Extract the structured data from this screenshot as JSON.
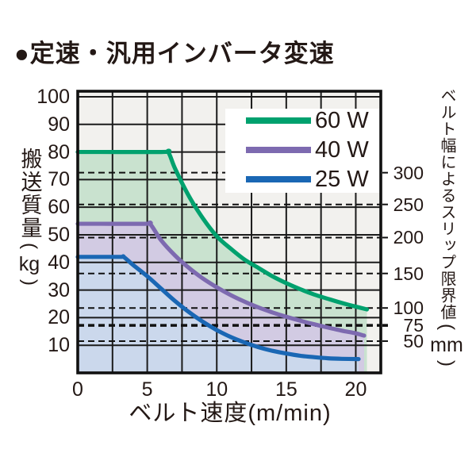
{
  "title": "●定速・汎用インバータ変速",
  "chart_data": {
    "type": "line",
    "title": "定速・汎用インバータ変速",
    "xlabel": "ベルト速度(m/min)",
    "ylabel": "搬送質量(kg)",
    "ylabel_main": "搬送質量",
    "ylabel_unit": "kg",
    "y2label": "ベルト幅によるスリップ限界値(mm)",
    "y2label_main": "ベルト幅によるスリップ限界値",
    "y2label_unit": "mm",
    "paren_open": "(",
    "paren_close": ")",
    "xlim": [
      0,
      21.8
    ],
    "ylim": [
      0,
      102
    ],
    "x_ticks": [
      0,
      5,
      10,
      15,
      20
    ],
    "y_ticks": [
      10,
      20,
      30,
      40,
      50,
      60,
      70,
      80,
      90,
      100
    ],
    "x_gridlines": [
      2.5,
      5,
      7.5,
      10,
      12.5,
      15,
      17.5,
      20
    ],
    "y_gridlines": [
      10,
      20,
      30,
      40,
      50,
      60,
      70,
      80,
      90,
      100
    ],
    "grid_on": true,
    "plot_bg": "#f2f1ee",
    "grid_color": "#1b1b1b",
    "border_color": "#111111",
    "legend_position": "top-right",
    "series": [
      {
        "name": "60 W",
        "color": "#00a16e",
        "fill": "#c9e2cf",
        "points": [
          [
            0,
            80
          ],
          [
            6,
            80
          ],
          [
            6.5,
            80
          ],
          [
            7,
            74
          ],
          [
            8,
            64
          ],
          [
            9,
            56
          ],
          [
            10,
            49.5
          ],
          [
            11,
            45
          ],
          [
            12,
            41
          ],
          [
            13,
            38
          ],
          [
            14,
            35
          ],
          [
            15,
            32.5
          ],
          [
            16,
            30.3
          ],
          [
            17,
            28.4
          ],
          [
            18,
            26.8
          ],
          [
            19,
            25.3
          ],
          [
            20,
            24
          ],
          [
            20.8,
            23
          ]
        ]
      },
      {
        "name": "40 W",
        "color": "#7d6ab0",
        "fill": "#d2cbe3",
        "points": [
          [
            0,
            54
          ],
          [
            4.8,
            54
          ],
          [
            5.2,
            54
          ],
          [
            6,
            48
          ],
          [
            7,
            42.5
          ],
          [
            8,
            38
          ],
          [
            9,
            34.2
          ],
          [
            10,
            31
          ],
          [
            11,
            28.2
          ],
          [
            12,
            25.8
          ],
          [
            13,
            23.7
          ],
          [
            14,
            21.9
          ],
          [
            15,
            20.3
          ],
          [
            16,
            18.9
          ],
          [
            17,
            17.6
          ],
          [
            18,
            16.4
          ],
          [
            19,
            15.3
          ],
          [
            20,
            14.3
          ],
          [
            20.6,
            13.5
          ]
        ]
      },
      {
        "name": "25 W",
        "color": "#1a67b4",
        "fill": "#cbd8ec",
        "points": [
          [
            0,
            42
          ],
          [
            3,
            42
          ],
          [
            3.3,
            42
          ],
          [
            4,
            39
          ],
          [
            5,
            35
          ],
          [
            6,
            30.5
          ],
          [
            7,
            26
          ],
          [
            8,
            22
          ],
          [
            9,
            18.5
          ],
          [
            10,
            15.5
          ],
          [
            11,
            13
          ],
          [
            12,
            11
          ],
          [
            13,
            9.3
          ],
          [
            14,
            8
          ],
          [
            15,
            7
          ],
          [
            16,
            6.2
          ],
          [
            17,
            5.7
          ],
          [
            18,
            5.3
          ],
          [
            19,
            5.1
          ],
          [
            20.2,
            5
          ]
        ]
      }
    ],
    "slip_limit_lines": [
      {
        "belt_width_mm": "300",
        "kg": 72.5,
        "bold": false
      },
      {
        "belt_width_mm": "250",
        "kg": 61.0,
        "bold": false
      },
      {
        "belt_width_mm": "200",
        "kg": 49.0,
        "bold": false
      },
      {
        "belt_width_mm": "150",
        "kg": 36.0,
        "bold": false
      },
      {
        "belt_width_mm": "100",
        "kg": 23.5,
        "bold": false
      },
      {
        "belt_width_mm": "75",
        "kg": 17.2,
        "bold": true
      },
      {
        "belt_width_mm": "50",
        "kg": 11.5,
        "bold": false
      }
    ],
    "legend": {
      "items": [
        "60 W",
        "40 W",
        "25 W"
      ]
    }
  }
}
